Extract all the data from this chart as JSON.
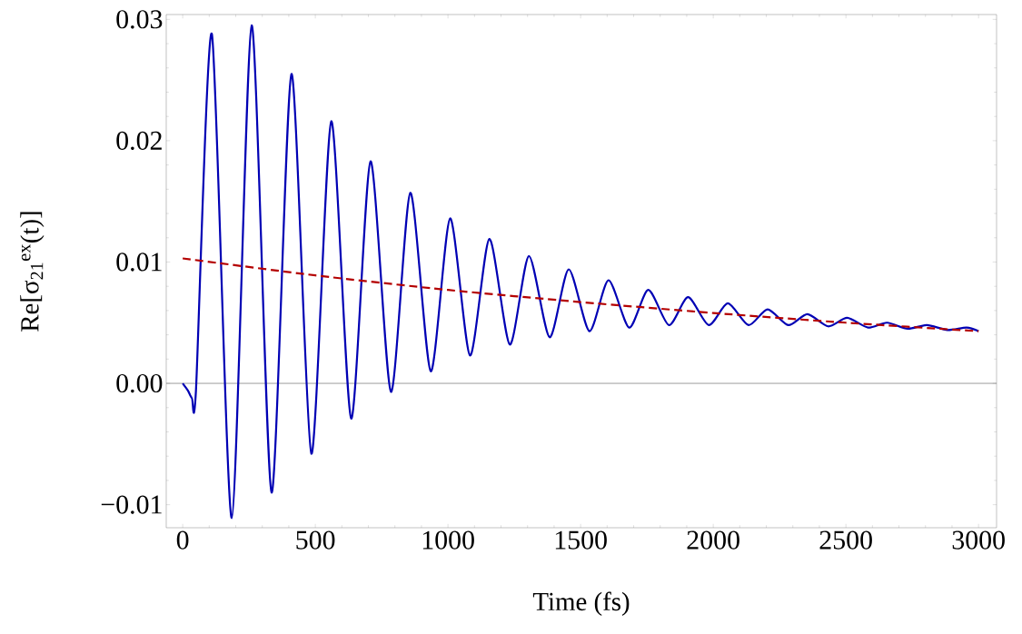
{
  "chart_data": {
    "type": "line",
    "xlabel": "Time (fs)",
    "ylabel": "Re[σ$_{21}$$^{ex}$(t)]",
    "xlim": [
      -62,
      3068
    ],
    "ylim": [
      -0.0119,
      0.0304
    ],
    "xticks": [
      0,
      500,
      1000,
      1500,
      2000,
      2500,
      3000
    ],
    "yticks": [
      {
        "value": -0.01,
        "label": "−0.01"
      },
      {
        "value": 0,
        "label": "0.00"
      },
      {
        "value": 0.01,
        "label": "0.01"
      },
      {
        "value": 0.02,
        "label": "0.02"
      },
      {
        "value": 0.03,
        "label": "0.03"
      }
    ],
    "grid": false,
    "ref_lines": [
      {
        "axis": "y",
        "value": 0,
        "color": "#808080"
      }
    ],
    "series": [
      {
        "color": "#0000b4",
        "line_style": "solid",
        "x": [
          0,
          20,
          35,
          50,
          110,
          185,
          260,
          335,
          410,
          485,
          560,
          635,
          708,
          785,
          858,
          935,
          1008,
          1083,
          1156,
          1233,
          1305,
          1383,
          1455,
          1533,
          1605,
          1683,
          1755,
          1833,
          1905,
          1983,
          2055,
          2133,
          2205,
          2283,
          2355,
          2433,
          2505,
          2583,
          2655,
          2733,
          2805,
          2883,
          2955,
          3000
        ],
        "values": [
          0,
          -0.0006,
          -0.0012,
          -0.0006,
          0.0288,
          -0.0111,
          0.0295,
          -0.009,
          0.0255,
          -0.0058,
          0.0216,
          -0.0029,
          0.0183,
          -0.0007,
          0.0157,
          0.001,
          0.0136,
          0.0023,
          0.0119,
          0.0032,
          0.0105,
          0.0038,
          0.0094,
          0.0043,
          0.0085,
          0.0046,
          0.0077,
          0.0048,
          0.0071,
          0.0048,
          0.0066,
          0.0048,
          0.0061,
          0.0048,
          0.0057,
          0.0047,
          0.0054,
          0.0046,
          0.005,
          0.0045,
          0.0048,
          0.0044,
          0.0046,
          0.0043
        ]
      },
      {
        "color": "#b40000",
        "line_style": "dashed",
        "x": [
          0,
          500,
          1000,
          1500,
          2000,
          2500,
          3000
        ],
        "values": [
          0.0103,
          0.0089,
          0.0077,
          0.0067,
          0.0058,
          0.005,
          0.0043
        ]
      }
    ]
  }
}
